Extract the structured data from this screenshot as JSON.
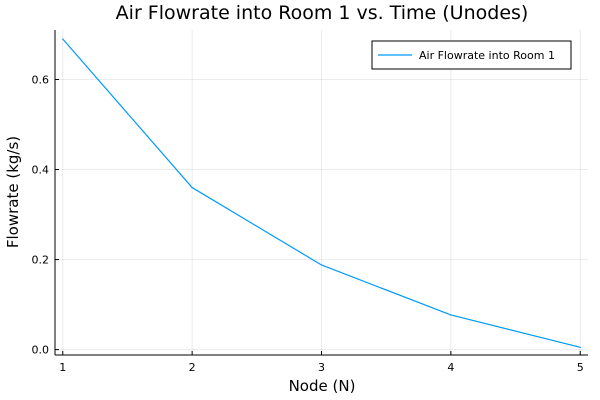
{
  "chart_data": {
    "type": "line",
    "title": "Air Flowrate into Room 1 vs. Time (Unodes)",
    "xlabel": "Node (N)",
    "ylabel": "Flowrate (kg/s)",
    "xlim": [
      0.94,
      5.06
    ],
    "ylim": [
      -0.012,
      0.71
    ],
    "xticks": [
      1,
      2,
      3,
      4,
      5
    ],
    "xtick_labels": [
      "1",
      "2",
      "3",
      "4",
      "5"
    ],
    "yticks": [
      0.0,
      0.2,
      0.4,
      0.6
    ],
    "ytick_labels": [
      "0.0",
      "0.2",
      "0.4",
      "0.6"
    ],
    "grid": true,
    "legend_position": "top-right",
    "series": [
      {
        "name": "Air Flowrate into Room 1",
        "color": "#009af9",
        "x": [
          1,
          2,
          3,
          4,
          5
        ],
        "y": [
          0.69,
          0.36,
          0.188,
          0.077,
          0.005
        ]
      }
    ]
  }
}
